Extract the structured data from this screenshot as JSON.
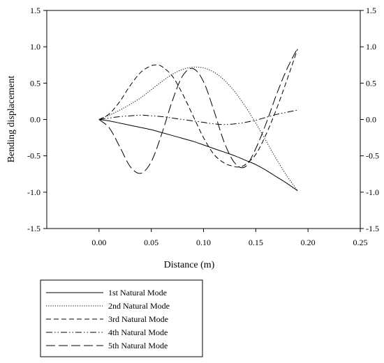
{
  "chart_data": {
    "type": "line",
    "title": "",
    "xlabel": "Distance  (m)",
    "ylabel": "Bending displacement",
    "xlim": [
      -0.05,
      0.25
    ],
    "ylim": [
      -1.5,
      1.5
    ],
    "x_ticks": [
      "0.00",
      "0.05",
      "0.10",
      "0.15",
      "0.20",
      "0.25"
    ],
    "x_tick_values": [
      0.0,
      0.05,
      0.1,
      0.15,
      0.2,
      0.25
    ],
    "y_ticks": [
      "1.5",
      "1.0",
      "0.5",
      "0.0",
      "-0.5",
      "-1.0",
      "-1.5"
    ],
    "y_tick_values": [
      1.5,
      1.0,
      0.5,
      0.0,
      -0.5,
      -1.0,
      -1.5
    ],
    "grid": false,
    "legend_position": "bottom-left",
    "series": [
      {
        "name": "1st Natural Mode",
        "dash": "solid",
        "x": [
          0.0,
          0.01,
          0.02,
          0.03,
          0.04,
          0.05,
          0.06,
          0.07,
          0.08,
          0.09,
          0.1,
          0.11,
          0.12,
          0.13,
          0.14,
          0.15,
          0.16,
          0.17,
          0.18,
          0.19
        ],
        "y": [
          0.0,
          -0.02,
          -0.05,
          -0.08,
          -0.11,
          -0.14,
          -0.18,
          -0.22,
          -0.26,
          -0.3,
          -0.35,
          -0.4,
          -0.45,
          -0.5,
          -0.56,
          -0.62,
          -0.7,
          -0.79,
          -0.88,
          -0.98
        ]
      },
      {
        "name": "2nd Natural Mode",
        "dash": "dotted",
        "x": [
          0.0,
          0.01,
          0.02,
          0.03,
          0.04,
          0.05,
          0.06,
          0.07,
          0.08,
          0.09,
          0.1,
          0.11,
          0.12,
          0.13,
          0.14,
          0.15,
          0.16,
          0.17,
          0.18,
          0.19
        ],
        "y": [
          0.0,
          0.06,
          0.13,
          0.21,
          0.3,
          0.41,
          0.52,
          0.62,
          0.69,
          0.72,
          0.71,
          0.65,
          0.54,
          0.38,
          0.18,
          -0.05,
          -0.3,
          -0.55,
          -0.78,
          -0.98
        ]
      },
      {
        "name": "3rd Natural Mode",
        "dash": "dashed",
        "x": [
          0.0,
          0.01,
          0.02,
          0.03,
          0.04,
          0.05,
          0.055,
          0.06,
          0.07,
          0.08,
          0.09,
          0.1,
          0.11,
          0.12,
          0.13,
          0.135,
          0.14,
          0.15,
          0.16,
          0.17,
          0.18,
          0.19
        ],
        "y": [
          0.0,
          0.08,
          0.25,
          0.47,
          0.65,
          0.74,
          0.75,
          0.73,
          0.6,
          0.35,
          0.05,
          -0.25,
          -0.48,
          -0.6,
          -0.65,
          -0.65,
          -0.62,
          -0.48,
          -0.2,
          0.15,
          0.55,
          0.97
        ]
      },
      {
        "name": "4th Natural Mode",
        "dash": "dash-dot-dot",
        "x": [
          0.0,
          0.01,
          0.02,
          0.03,
          0.04,
          0.05,
          0.06,
          0.07,
          0.08,
          0.09,
          0.1,
          0.11,
          0.12,
          0.13,
          0.14,
          0.15,
          0.16,
          0.17,
          0.18,
          0.19
        ],
        "y": [
          0.0,
          0.02,
          0.04,
          0.05,
          0.06,
          0.05,
          0.04,
          0.02,
          0.0,
          -0.02,
          -0.04,
          -0.06,
          -0.07,
          -0.06,
          -0.04,
          -0.01,
          0.03,
          0.07,
          0.1,
          0.13
        ]
      },
      {
        "name": "5th Natural Mode",
        "dash": "long-dash",
        "x": [
          0.0,
          0.01,
          0.02,
          0.03,
          0.04,
          0.05,
          0.06,
          0.07,
          0.08,
          0.09,
          0.1,
          0.11,
          0.12,
          0.13,
          0.14,
          0.15,
          0.16,
          0.17,
          0.18,
          0.19
        ],
        "y": [
          0.0,
          -0.12,
          -0.38,
          -0.65,
          -0.74,
          -0.58,
          -0.2,
          0.25,
          0.6,
          0.7,
          0.52,
          0.12,
          -0.32,
          -0.6,
          -0.65,
          -0.4,
          -0.05,
          0.35,
          0.7,
          0.98
        ]
      }
    ]
  }
}
